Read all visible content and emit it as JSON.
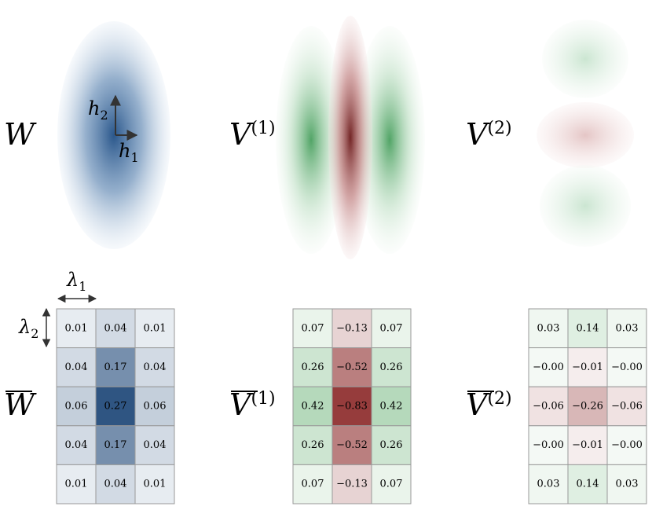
{
  "top": {
    "panels": [
      {
        "symbol": "W"
      },
      {
        "symbol": "V",
        "superscript": "(1)"
      },
      {
        "symbol": "V",
        "superscript": "(2)"
      }
    ],
    "axes": {
      "h1": {
        "symbol": "h",
        "subscript": "1"
      },
      "h2": {
        "symbol": "h",
        "subscript": "2"
      }
    }
  },
  "bottom": {
    "scales": {
      "lambda1": {
        "symbol": "λ",
        "subscript": "1"
      },
      "lambda2": {
        "symbol": "λ",
        "subscript": "2"
      }
    },
    "matrices": [
      {
        "symbol": "W",
        "rows": [
          [
            "0.01",
            "0.04",
            "0.01"
          ],
          [
            "0.04",
            "0.17",
            "0.04"
          ],
          [
            "0.06",
            "0.27",
            "0.06"
          ],
          [
            "0.04",
            "0.17",
            "0.04"
          ],
          [
            "0.01",
            "0.04",
            "0.01"
          ]
        ]
      },
      {
        "symbol": "V",
        "superscript": "(1)",
        "rows": [
          [
            "0.07",
            "−0.13",
            "0.07"
          ],
          [
            "0.26",
            "−0.52",
            "0.26"
          ],
          [
            "0.42",
            "−0.83",
            "0.42"
          ],
          [
            "0.26",
            "−0.52",
            "0.26"
          ],
          [
            "0.07",
            "−0.13",
            "0.07"
          ]
        ]
      },
      {
        "symbol": "V",
        "superscript": "(2)",
        "rows": [
          [
            "0.03",
            "0.14",
            "0.03"
          ],
          [
            "−0.00",
            "−0.01",
            "−0.00"
          ],
          [
            "−0.06",
            "−0.26",
            "−0.06"
          ],
          [
            "−0.00",
            "−0.01",
            "−0.00"
          ],
          [
            "0.03",
            "0.14",
            "0.03"
          ]
        ]
      }
    ]
  }
}
